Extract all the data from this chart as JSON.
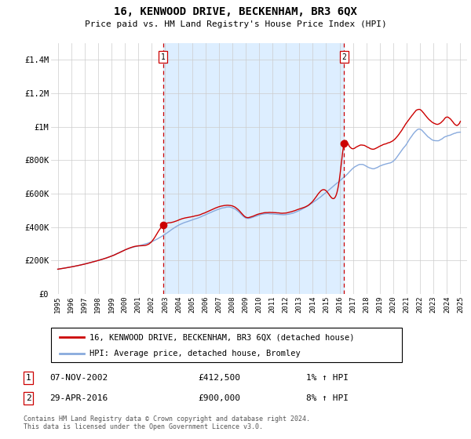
{
  "title": "16, KENWOOD DRIVE, BECKENHAM, BR3 6QX",
  "subtitle": "Price paid vs. HM Land Registry's House Price Index (HPI)",
  "legend_line1": "16, KENWOOD DRIVE, BECKENHAM, BR3 6QX (detached house)",
  "legend_line2": "HPI: Average price, detached house, Bromley",
  "transaction1_label": "1",
  "transaction1_date": "07-NOV-2002",
  "transaction1_price": "£412,500",
  "transaction1_hpi": "1% ↑ HPI",
  "transaction2_label": "2",
  "transaction2_date": "29-APR-2016",
  "transaction2_price": "£900,000",
  "transaction2_hpi": "8% ↑ HPI",
  "footnote": "Contains HM Land Registry data © Crown copyright and database right 2024.\nThis data is licensed under the Open Government Licence v3.0.",
  "price_color": "#cc0000",
  "hpi_color": "#88aadd",
  "shade_color": "#ddeeff",
  "vline_color": "#cc0000",
  "marker1_x": 2002.85,
  "marker1_y": 412500,
  "marker2_x": 2016.33,
  "marker2_y": 900000,
  "yticks": [
    0,
    200000,
    400000,
    600000,
    800000,
    1000000,
    1200000,
    1400000
  ],
  "ytick_labels": [
    "£0",
    "£200K",
    "£400K",
    "£600K",
    "£800K",
    "£1M",
    "£1.2M",
    "£1.4M"
  ],
  "xlim": [
    1994.5,
    2025.5
  ],
  "ylim": [
    0,
    1500000
  ],
  "background_color": "#ffffff",
  "grid_color": "#cccccc"
}
